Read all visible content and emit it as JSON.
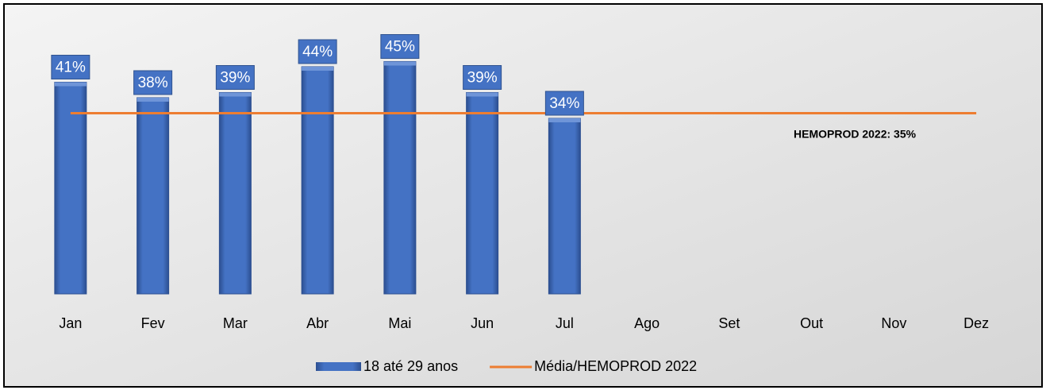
{
  "chart_data": {
    "type": "bar",
    "categories": [
      "Jan",
      "Fev",
      "Mar",
      "Abr",
      "Mai",
      "Jun",
      "Jul",
      "Ago",
      "Set",
      "Out",
      "Nov",
      "Dez"
    ],
    "series": [
      {
        "name": "18 até 29 anos",
        "type": "bar",
        "color": "#4472c4",
        "values": [
          41,
          38,
          39,
          44,
          45,
          39,
          34,
          null,
          null,
          null,
          null,
          null
        ],
        "value_labels": [
          "41%",
          "38%",
          "39%",
          "44%",
          "45%",
          "39%",
          "34%",
          null,
          null,
          null,
          null,
          null
        ]
      },
      {
        "name": "Média/HEMOPROD 2022",
        "type": "line",
        "color": "#ed7d31",
        "values": [
          35,
          35,
          35,
          35,
          35,
          35,
          35,
          35,
          35,
          35,
          35,
          35
        ]
      }
    ],
    "annotation": "HEMOPROD 2022: 35%",
    "ylim": [
      0,
      54
    ],
    "legend": "bottom"
  }
}
